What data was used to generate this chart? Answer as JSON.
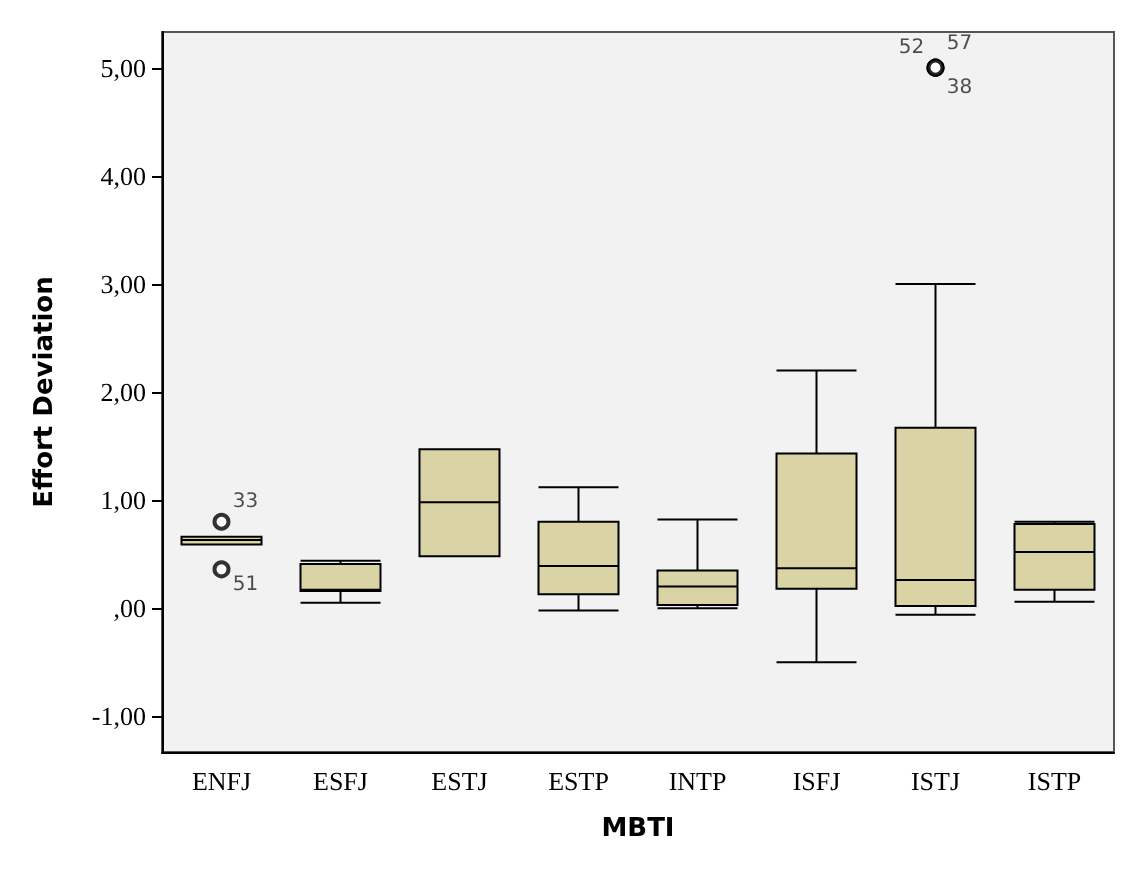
{
  "chart_data": {
    "type": "box",
    "xlabel": "MBTI",
    "ylabel": "Effort Deviation",
    "categories": [
      "ENFJ",
      "ESFJ",
      "ESTJ",
      "ESTP",
      "INTP",
      "ISFJ",
      "ISTJ",
      "ISTP"
    ],
    "series": [
      {
        "color": "#d9d3a5",
        "boxes": [
          {
            "low": 0.59,
            "q1": 0.59,
            "median": 0.63,
            "q3": 0.66,
            "high": 0.66,
            "outliers": [
              0.8,
              0.36
            ]
          },
          {
            "low": 0.05,
            "q1": 0.16,
            "median": 0.17,
            "q3": 0.41,
            "high": 0.44
          },
          {
            "low": 0.48,
            "q1": 0.48,
            "median": 0.98,
            "q3": 1.47,
            "high": 1.47
          },
          {
            "low": -0.02,
            "q1": 0.13,
            "median": 0.39,
            "q3": 0.8,
            "high": 1.12
          },
          {
            "low": 0.0,
            "q1": 0.03,
            "median": 0.2,
            "q3": 0.35,
            "high": 0.82
          },
          {
            "low": -0.5,
            "q1": 0.18,
            "median": 0.37,
            "q3": 1.43,
            "high": 2.2
          },
          {
            "low": -0.06,
            "q1": 0.02,
            "median": 0.26,
            "q3": 1.67,
            "high": 3.0,
            "outliers": [
              5.0,
              5.0,
              5.0
            ]
          },
          {
            "low": 0.06,
            "q1": 0.17,
            "median": 0.52,
            "q3": 0.78,
            "high": 0.8
          }
        ]
      }
    ],
    "ylim": [
      -1.33,
      5.33
    ],
    "yticks": [
      {
        "value": -1,
        "label": "-1,00"
      },
      {
        "value": 0,
        "label": ",00"
      },
      {
        "value": 1,
        "label": "1,00"
      },
      {
        "value": 2,
        "label": "2,00"
      },
      {
        "value": 3,
        "label": "3,00"
      },
      {
        "value": 4,
        "label": "4,00"
      },
      {
        "value": 5,
        "label": "5,00"
      }
    ],
    "annotations": [
      "33",
      "51",
      "52",
      "57",
      "38"
    ],
    "grid": false
  }
}
